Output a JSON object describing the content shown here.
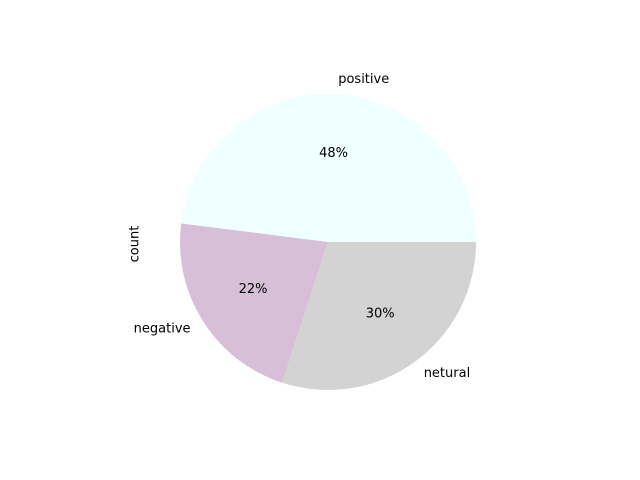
{
  "chart_data": {
    "type": "pie",
    "ylabel": "count",
    "legend": "none",
    "start_angle_deg": 0,
    "direction": "counterclockwise",
    "slices": [
      {
        "label": "positive",
        "value": 48,
        "pct_label": "48%",
        "color": "#f0ffff"
      },
      {
        "label": "negative",
        "value": 22,
        "pct_label": "22%",
        "color": "#d8bfd8"
      },
      {
        "label": "netural",
        "value": 30,
        "pct_label": "30%",
        "color": "#d3d3d3"
      }
    ]
  }
}
